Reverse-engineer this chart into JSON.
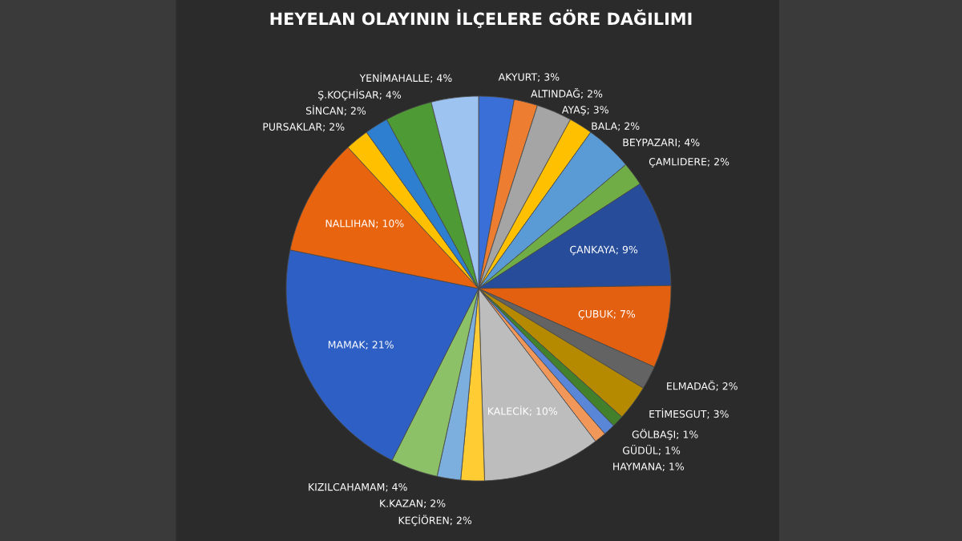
{
  "chart_data": {
    "type": "pie",
    "title": "HEYELAN OLAYININ İLÇELERE GÖRE DAĞILIMI",
    "categories": [
      "AKYURT",
      "ALTINDAĞ",
      "AYAŞ",
      "BALA",
      "BEYPAZARI",
      "ÇAMLIDERE",
      "ÇANKAYA",
      "ÇUBUK",
      "ELMADAĞ",
      "ETİMESGUT",
      "GÖLBAŞI",
      "GÜDÜL",
      "HAYMANA",
      "KALECİK",
      "KEÇİÖREN",
      "K.KAZAN",
      "KIZILCAHAMAM",
      "MAMAK",
      "NALLIHAN",
      "PURSAKLAR",
      "SİNCAN",
      "Ş.KOÇHİSAR",
      "YENİMAHALLE"
    ],
    "values": [
      3,
      2,
      3,
      2,
      4,
      2,
      9,
      7,
      2,
      3,
      1,
      1,
      1,
      10,
      2,
      2,
      4,
      21,
      10,
      2,
      2,
      4,
      4
    ],
    "value_labels": [
      "3%",
      "2%",
      "3%",
      "2%",
      "4%",
      "2%",
      "9%",
      "7%",
      "2%",
      "3%",
      "1%",
      "1%",
      "1%",
      "10%",
      "2%",
      "2%",
      "4%",
      "21%",
      "10%",
      "2%",
      "2%",
      "4%",
      "4%"
    ],
    "colors": [
      "#3a6fd8",
      "#ed7d31",
      "#a5a5a5",
      "#ffc000",
      "#5b9bd5",
      "#70ad47",
      "#264c9a",
      "#e2600f",
      "#636363",
      "#b58a00",
      "#43802b",
      "#5a86d8",
      "#f1975a",
      "#bdbdbd",
      "#ffcd33",
      "#7cafdd",
      "#8cc168",
      "#2e5fc4",
      "#e8640f",
      "#ffc000",
      "#2f7fd0",
      "#4e9a34",
      "#9dc3f0"
    ]
  }
}
